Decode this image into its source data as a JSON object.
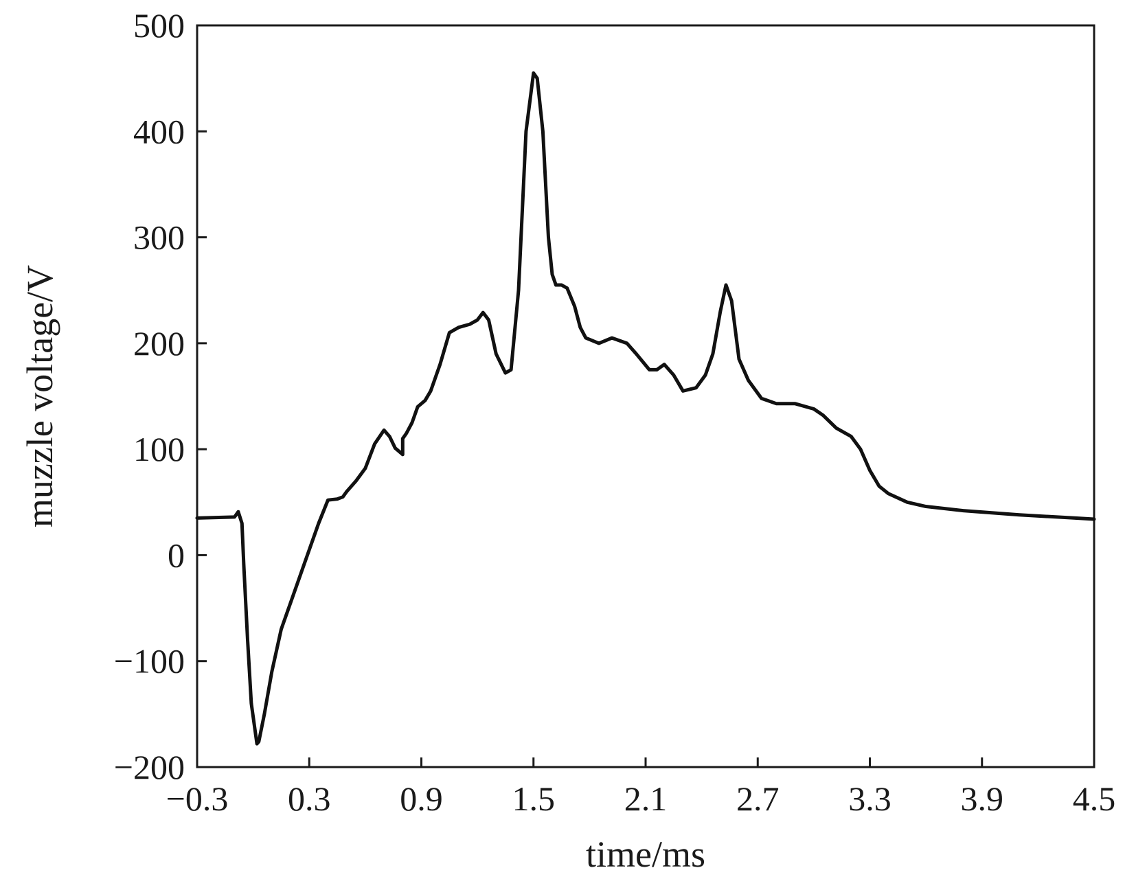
{
  "chart_data": {
    "type": "line",
    "xlabel": "time/ms",
    "ylabel": "muzzle voltage/V",
    "xlim": [
      -0.3,
      4.5
    ],
    "ylim": [
      -200,
      500
    ],
    "x_ticks": [
      "−0.3",
      "0.3",
      "0.9",
      "1.5",
      "2.1",
      "2.7",
      "3.3",
      "3.9",
      "4.5"
    ],
    "y_ticks": [
      "500",
      "400",
      "300",
      "200",
      "100",
      "0",
      "−100",
      "−200"
    ],
    "grid": false,
    "line_color": "#111111",
    "series": [
      {
        "x": [
          -0.3,
          -0.1,
          -0.08,
          -0.06,
          -0.05,
          -0.03,
          -0.01,
          0.02,
          0.03,
          0.06,
          0.1,
          0.15,
          0.2,
          0.28,
          0.35,
          0.4,
          0.45,
          0.48,
          0.5,
          0.55,
          0.6,
          0.65,
          0.7,
          0.73,
          0.76,
          0.78,
          0.8,
          0.8,
          0.82,
          0.85,
          0.88,
          0.92,
          0.95,
          1.0,
          1.05,
          1.1,
          1.16,
          1.2,
          1.23,
          1.26,
          1.3,
          1.35,
          1.38,
          1.42,
          1.46,
          1.5,
          1.52,
          1.55,
          1.58,
          1.6,
          1.62,
          1.65,
          1.68,
          1.72,
          1.75,
          1.78,
          1.85,
          1.92,
          2.0,
          2.05,
          2.12,
          2.16,
          2.2,
          2.25,
          2.3,
          2.37,
          2.42,
          2.46,
          2.5,
          2.53,
          2.56,
          2.6,
          2.65,
          2.72,
          2.8,
          2.9,
          3.0,
          3.05,
          3.12,
          3.2,
          3.25,
          3.3,
          3.35,
          3.4,
          3.5,
          3.6,
          3.8,
          4.1,
          4.4,
          4.5
        ],
        "y": [
          35,
          36,
          41,
          30,
          -10,
          -80,
          -140,
          -178,
          -176,
          -150,
          -110,
          -70,
          -45,
          -5,
          30,
          52,
          53,
          55,
          60,
          70,
          82,
          105,
          118,
          112,
          101,
          98,
          95,
          110,
          115,
          125,
          140,
          146,
          155,
          180,
          210,
          215,
          218,
          222,
          229,
          222,
          190,
          172,
          175,
          250,
          400,
          455,
          450,
          400,
          300,
          265,
          255,
          255,
          252,
          235,
          215,
          205,
          200,
          205,
          200,
          190,
          175,
          175,
          180,
          170,
          155,
          158,
          170,
          190,
          230,
          255,
          240,
          185,
          165,
          148,
          143,
          143,
          138,
          132,
          120,
          112,
          100,
          80,
          65,
          58,
          50,
          46,
          42,
          38,
          35,
          34
        ]
      }
    ]
  }
}
